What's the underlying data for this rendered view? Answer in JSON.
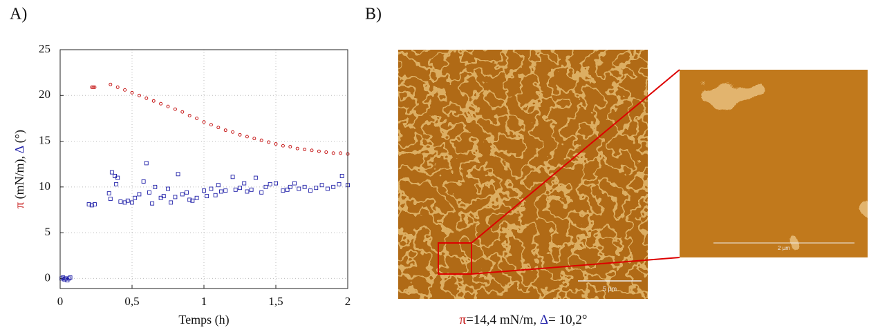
{
  "panel_a_label": "A)",
  "panel_b_label": "B)",
  "chart_data": {
    "type": "scatter",
    "x_label": "Temps (h)",
    "y_label_parts": [
      "π",
      " (mN/m), ",
      "Δ",
      " (°)"
    ],
    "xlim": [
      0,
      2
    ],
    "ylim": [
      -1.1,
      25
    ],
    "xticks": [
      0,
      {
        "value": 0.5,
        "label": "0,5"
      },
      1,
      {
        "value": 1.5,
        "label": "1,5"
      },
      2
    ],
    "yticks": [
      0,
      5,
      10,
      15,
      20,
      25
    ],
    "grid": true,
    "series": [
      {
        "name": "π",
        "color": "#c00000",
        "marker": "circle",
        "x": [
          0.22,
          0.23,
          0.24,
          0.35,
          0.4,
          0.45,
          0.5,
          0.55,
          0.6,
          0.65,
          0.7,
          0.75,
          0.8,
          0.85,
          0.9,
          0.95,
          1.0,
          1.05,
          1.1,
          1.15,
          1.2,
          1.25,
          1.3,
          1.35,
          1.4,
          1.45,
          1.5,
          1.55,
          1.6,
          1.65,
          1.7,
          1.75,
          1.8,
          1.85,
          1.9,
          1.95,
          2.0
        ],
        "values": [
          20.9,
          20.9,
          20.9,
          21.2,
          20.9,
          20.6,
          20.3,
          20.0,
          19.7,
          19.4,
          19.1,
          18.8,
          18.5,
          18.2,
          17.8,
          17.5,
          17.1,
          16.8,
          16.5,
          16.2,
          16.0,
          15.7,
          15.5,
          15.3,
          15.1,
          14.9,
          14.7,
          14.5,
          14.4,
          14.2,
          14.1,
          14.0,
          13.9,
          13.8,
          13.7,
          13.7,
          13.6
        ]
      },
      {
        "name": "Δ",
        "color": "#1f1fa8",
        "marker": "square",
        "x": [
          0.01,
          0.02,
          0.03,
          0.04,
          0.05,
          0.06,
          0.07,
          0.2,
          0.22,
          0.24,
          0.34,
          0.35,
          0.36,
          0.38,
          0.39,
          0.4,
          0.42,
          0.45,
          0.47,
          0.5,
          0.52,
          0.55,
          0.58,
          0.6,
          0.62,
          0.64,
          0.66,
          0.7,
          0.72,
          0.75,
          0.77,
          0.8,
          0.82,
          0.85,
          0.88,
          0.9,
          0.92,
          0.95,
          1.0,
          1.02,
          1.05,
          1.08,
          1.1,
          1.12,
          1.15,
          1.2,
          1.22,
          1.25,
          1.28,
          1.3,
          1.33,
          1.36,
          1.4,
          1.43,
          1.46,
          1.5,
          1.55,
          1.58,
          1.6,
          1.63,
          1.66,
          1.7,
          1.74,
          1.78,
          1.82,
          1.86,
          1.9,
          1.94,
          1.96,
          2.0
        ],
        "values": [
          0,
          0.1,
          -0.1,
          0,
          -0.2,
          0,
          0.1,
          8.1,
          8.0,
          8.1,
          9.3,
          8.7,
          11.6,
          11.2,
          10.3,
          11.0,
          8.4,
          8.3,
          8.5,
          8.3,
          8.8,
          9.2,
          10.6,
          12.6,
          9.4,
          8.2,
          10.0,
          8.8,
          9.0,
          9.8,
          8.3,
          8.9,
          11.4,
          9.2,
          9.4,
          8.6,
          8.5,
          8.8,
          9.6,
          9.0,
          9.8,
          9.1,
          10.2,
          9.5,
          9.6,
          11.1,
          9.7,
          9.9,
          10.4,
          9.5,
          9.7,
          11.0,
          9.4,
          10.0,
          10.3,
          10.4,
          9.6,
          9.7,
          10.0,
          10.4,
          9.8,
          10.0,
          9.6,
          9.9,
          10.2,
          9.8,
          10.0,
          10.3,
          11.2,
          10.2
        ]
      }
    ]
  },
  "afm": {
    "scale_bar_main": "5 µm",
    "scale_bar_inset": "2 µm",
    "caption_parts": [
      "π",
      "=14,4 mN/m, ",
      "Δ",
      "= 10,2°"
    ]
  }
}
